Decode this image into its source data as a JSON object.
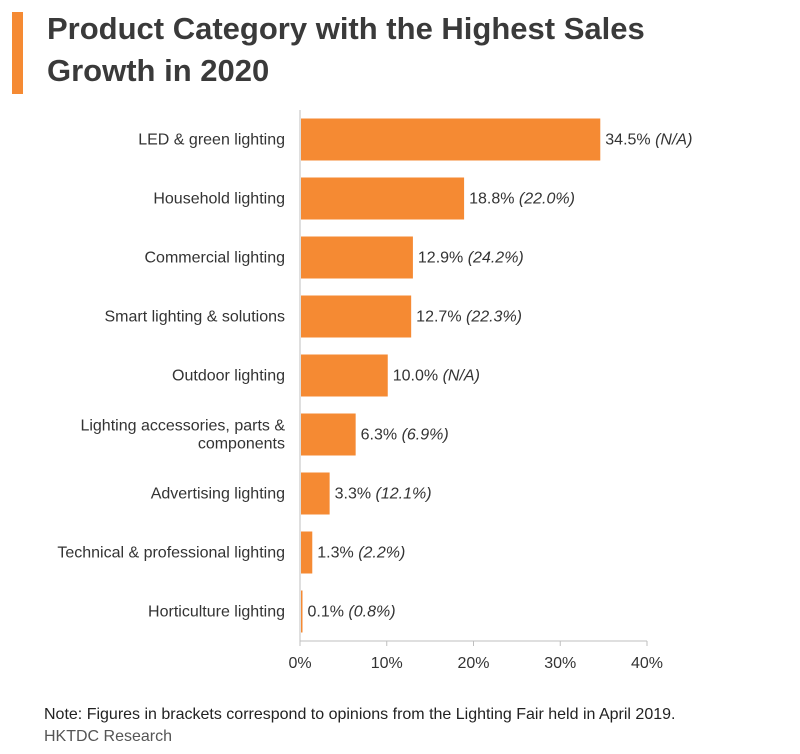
{
  "chart_data": {
    "type": "bar",
    "orientation": "horizontal",
    "title": "Product Category with the Highest Sales Growth in 2020",
    "categories": [
      "LED & green lighting",
      "Household lighting",
      "Commercial lighting",
      "Smart lighting & solutions",
      "Outdoor lighting",
      "Lighting accessories, parts & components",
      "Advertising lighting",
      "Technical & professional lighting",
      "Horticulture lighting"
    ],
    "values": [
      34.5,
      18.8,
      12.9,
      12.7,
      10.0,
      6.3,
      3.3,
      1.3,
      0.1
    ],
    "value_labels": [
      "34.5%",
      "18.8%",
      "12.9%",
      "12.7%",
      "10.0%",
      "6.3%",
      "3.3%",
      "1.3%",
      "0.1%"
    ],
    "bracket_labels": [
      "(N/A)",
      "(22.0%)",
      "(24.2%)",
      "(22.3%)",
      "(N/A)",
      "(6.9%)",
      "(12.1%)",
      "(2.2%)",
      "(0.8%)"
    ],
    "xlim": [
      0,
      40
    ],
    "xticks": [
      0,
      10,
      20,
      30,
      40
    ],
    "xtick_labels": [
      "0%",
      "10%",
      "20%",
      "30%",
      "40%"
    ],
    "xlabel": "",
    "ylabel": "",
    "grid": false,
    "bar_color": "#F58A33"
  },
  "header": {
    "title_line1": "Product Category with the Highest Sales",
    "title_line2": "Growth in 2020",
    "accent_color": "#F58A33"
  },
  "footer": {
    "note": "Note: Figures in brackets correspond to opinions from the Lighting Fair held in April 2019.",
    "source": "HKTDC Research"
  }
}
